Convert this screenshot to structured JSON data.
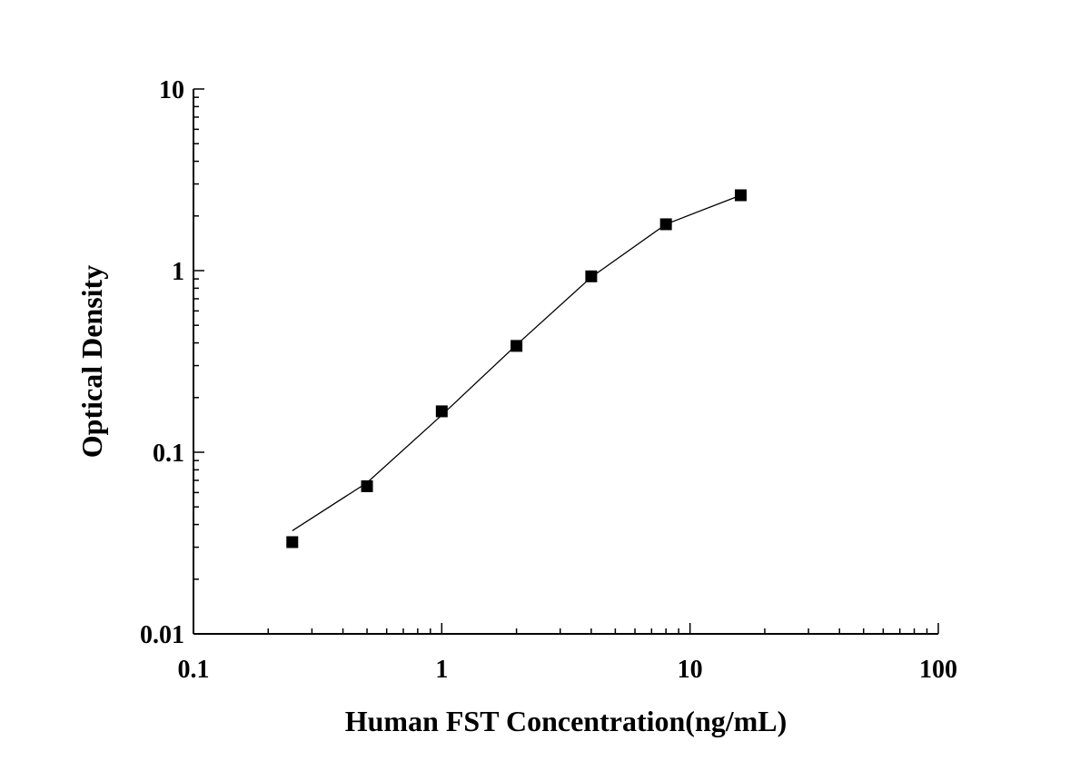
{
  "chart_data": {
    "type": "scatter",
    "title": "",
    "xlabel": "Human FST Concentration(ng/mL)",
    "ylabel": "Optical Density",
    "x_scale": "log",
    "y_scale": "log",
    "xlim": [
      0.1,
      100
    ],
    "ylim": [
      0.01,
      10
    ],
    "x_ticks": [
      "0.1",
      "1",
      "10",
      "100"
    ],
    "y_ticks": [
      "0.01",
      "0.1",
      "1",
      "10"
    ],
    "grid": false,
    "legend": "none",
    "marker": "square",
    "color": "#000000",
    "points": {
      "x": [
        0.25,
        0.5,
        1,
        2,
        4,
        8,
        16
      ],
      "y": [
        0.032,
        0.065,
        0.168,
        0.385,
        0.93,
        1.8,
        2.6
      ]
    },
    "fit_curve": {
      "x": [
        0.25,
        0.5,
        1,
        2,
        4,
        8,
        16
      ],
      "y": [
        0.037,
        0.068,
        0.16,
        0.39,
        0.92,
        1.8,
        2.6
      ]
    }
  }
}
